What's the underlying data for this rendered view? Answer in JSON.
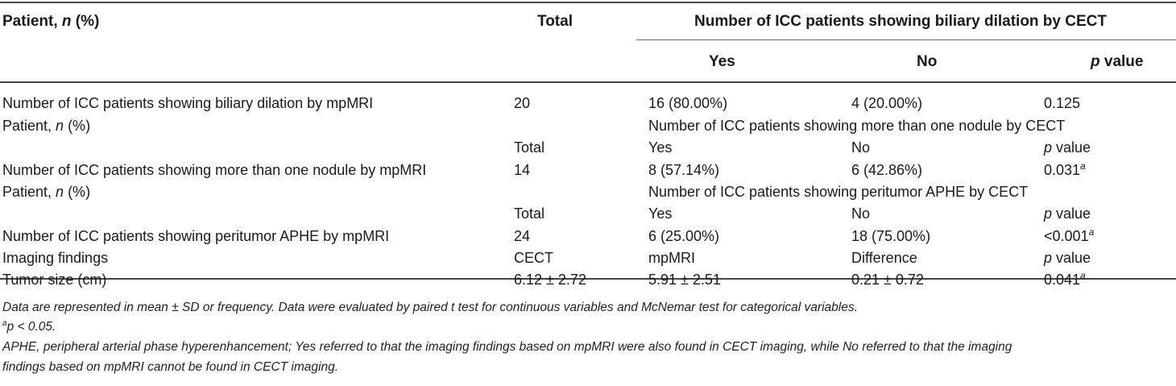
{
  "header": {
    "col_patient": "Patient, ",
    "col_patient_n": "n",
    "col_patient_pct": " (%)",
    "col_total": "Total",
    "group_title": "Number of ICC patients showing biliary dilation by CECT",
    "col_yes": "Yes",
    "col_no": "No",
    "col_p_italic": "p",
    "col_p_rest": " value"
  },
  "rows": [
    {
      "c0": "Number of ICC patients showing biliary dilation by mpMRI",
      "c1": "20",
      "c2": "16 (80.00%)",
      "c3": "4 (20.00%)",
      "c4": "0.125",
      "c4_sup": ""
    },
    {
      "c0_a": "Patient, ",
      "c0_it": "n",
      "c0_b": " (%)",
      "span": "Number of ICC patients showing more than one nodule by CECT"
    },
    {
      "c1": "Total",
      "c2": "Yes",
      "c3": "No",
      "c4_it": "p",
      "c4_rest": " value"
    },
    {
      "c0": "Number of ICC patients showing more than one nodule by mpMRI",
      "c1": "14",
      "c2": "8 (57.14%)",
      "c3": "6 (42.86%)",
      "c4": "0.031",
      "c4_sup": "a"
    },
    {
      "c0_a": "Patient, ",
      "c0_it": "n",
      "c0_b": " (%)",
      "span": "Number of ICC patients showing peritumor APHE by CECT"
    },
    {
      "c1": "Total",
      "c2": "Yes",
      "c3": "No",
      "c4_it": "p",
      "c4_rest": " value"
    },
    {
      "c0": "Number of ICC patients showing peritumor APHE by mpMRI",
      "c1": "24",
      "c2": "6 (25.00%)",
      "c3": "18 (75.00%)",
      "c4": "<0.001",
      "c4_sup": "a"
    },
    {
      "c0": "Imaging findings",
      "c1": "CECT",
      "c2": "mpMRI",
      "c3": "Difference",
      "c4_it": "p",
      "c4_rest": " value"
    },
    {
      "c0": "Tumor size (cm)",
      "c1": "6.12 ± 2.72",
      "c2": "5.91 ± 2.51",
      "c3": "0.21 ± 0.72",
      "c4": "0.041",
      "c4_sup": "a"
    }
  ],
  "footnotes": {
    "line1": "Data are represented in mean ± SD or frequency. Data were evaluated by paired t test for continuous variables and McNemar test for categorical variables.",
    "line2_sup": "a",
    "line2": "p < 0.05.",
    "line3": "APHE, peripheral arterial phase hyperenhancement; Yes referred to that the imaging findings based on mpMRI were also found in CECT imaging, while No referred to that the imaging",
    "line4": "findings based on mpMRI cannot be found in CECT imaging."
  }
}
